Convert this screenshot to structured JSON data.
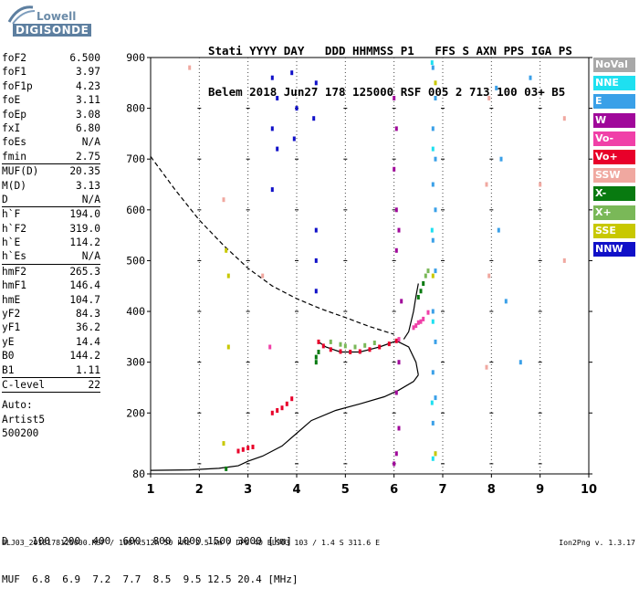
{
  "logo": {
    "line1": "Lowell",
    "line2": "DIGISONDE"
  },
  "header": {
    "line1": "Stati YYYY DAY   DDD HHMMSS P1   FFS S AXN PPS IGA PS",
    "line2": "Belem 2018 Jun27 178 125000 RSF 005 2 713 100 03+ B5"
  },
  "params": [
    {
      "label": "foF2",
      "value": "6.500"
    },
    {
      "label": "foF1",
      "value": "3.97"
    },
    {
      "label": "foF1p",
      "value": "4.23"
    },
    {
      "label": "foE",
      "value": "3.11"
    },
    {
      "label": "foEp",
      "value": "3.08"
    },
    {
      "label": "fxI",
      "value": "6.80"
    },
    {
      "label": "foEs",
      "value": "N/A"
    },
    {
      "label": "fmin",
      "value": "2.75"
    },
    {
      "label": "MUF(D)",
      "value": "20.35"
    },
    {
      "label": "M(D)",
      "value": "3.13"
    },
    {
      "label": "D",
      "value": "N/A"
    },
    {
      "label": "h`F",
      "value": "194.0"
    },
    {
      "label": "h`F2",
      "value": "319.0"
    },
    {
      "label": "h`E",
      "value": "114.2"
    },
    {
      "label": "h`Es",
      "value": "N/A"
    },
    {
      "label": "hmF2",
      "value": "265.3"
    },
    {
      "label": "hmF1",
      "value": "146.4"
    },
    {
      "label": "hmE",
      "value": "104.7"
    },
    {
      "label": "yF2",
      "value": "84.3"
    },
    {
      "label": "yF1",
      "value": "36.2"
    },
    {
      "label": "yE",
      "value": "14.4"
    },
    {
      "label": "B0",
      "value": "144.2"
    },
    {
      "label": "B1",
      "value": "1.11"
    },
    {
      "label": "C-level",
      "value": "22"
    }
  ],
  "auto": {
    "line1": "Auto:",
    "line2": "Artist5",
    "line3": "500200"
  },
  "legend": [
    {
      "label": "NoVal",
      "color": "#a8a8a8"
    },
    {
      "label": "NNE",
      "color": "#1ee0f0"
    },
    {
      "label": "E",
      "color": "#3aa0e8"
    },
    {
      "label": "W",
      "color": "#a0089a"
    },
    {
      "label": "Vo-",
      "color": "#f040a8"
    },
    {
      "label": "Vo+",
      "color": "#e8002a"
    },
    {
      "label": "SSW",
      "color": "#f0a8a0"
    },
    {
      "label": "X-",
      "color": "#087a10"
    },
    {
      "label": "X+",
      "color": "#7ab858"
    },
    {
      "label": "SSE",
      "color": "#c8c800"
    },
    {
      "label": "NNW",
      "color": "#1010c8"
    }
  ],
  "footer": {
    "line1": "D    100  200  400  600  800 1000 1500 3000 [km]",
    "line2": "MUF  6.8  6.9  7.2  7.7  8.5  9.5 12.5 20.4 [MHz]",
    "file": "BLJ03_2018178125000.RSF / 180fx512h 50 kHz 2.5 km / DPS-4D BLJ03 103 / 1.4 S 311.6 E",
    "version": "Ion2Png v. 1.3.17"
  },
  "chart_data": {
    "type": "scatter",
    "title": "",
    "xlabel": "",
    "ylabel": "",
    "xlim": [
      1,
      10
    ],
    "ylim": [
      80,
      900
    ],
    "y_scale": "linear",
    "x_ticks": [
      "1",
      "2",
      "3",
      "4",
      "5",
      "6",
      "7",
      "8",
      "9",
      "10"
    ],
    "y_ticks": [
      "80",
      "200",
      "300",
      "400",
      "500",
      "600",
      "700",
      "800",
      "900"
    ],
    "grid": "dotted vertical at integer MHz, tick marks at 100 km",
    "series": [
      {
        "name": "Vo+",
        "color": "#e8002a",
        "points": [
          [
            2.8,
            125
          ],
          [
            2.9,
            128
          ],
          [
            3.0,
            131
          ],
          [
            3.1,
            133
          ],
          [
            3.5,
            200
          ],
          [
            3.6,
            205
          ],
          [
            3.7,
            210
          ],
          [
            3.8,
            218
          ],
          [
            3.9,
            228
          ],
          [
            4.45,
            340
          ],
          [
            4.55,
            332
          ],
          [
            4.7,
            325
          ],
          [
            4.9,
            321
          ],
          [
            5.1,
            320
          ],
          [
            5.3,
            321
          ],
          [
            5.5,
            325
          ],
          [
            5.7,
            330
          ],
          [
            5.9,
            336
          ],
          [
            6.05,
            342
          ]
        ]
      },
      {
        "name": "Vo-",
        "color": "#f040a8",
        "points": [
          [
            3.45,
            330
          ],
          [
            6.1,
            345
          ],
          [
            6.4,
            368
          ],
          [
            6.5,
            378
          ],
          [
            6.6,
            385
          ],
          [
            6.7,
            398
          ],
          [
            6.55,
            380
          ],
          [
            6.45,
            372
          ]
        ]
      },
      {
        "name": "X-",
        "color": "#087a10",
        "points": [
          [
            2.55,
            90
          ],
          [
            4.4,
            310
          ],
          [
            4.45,
            320
          ],
          [
            4.4,
            300
          ],
          [
            6.5,
            428
          ],
          [
            6.55,
            440
          ],
          [
            6.6,
            455
          ]
        ]
      },
      {
        "name": "X+",
        "color": "#7ab858",
        "points": [
          [
            4.7,
            340
          ],
          [
            4.9,
            335
          ],
          [
            5.0,
            332
          ],
          [
            5.2,
            330
          ],
          [
            5.4,
            333
          ],
          [
            5.6,
            338
          ],
          [
            6.65,
            470
          ],
          [
            6.7,
            480
          ]
        ]
      },
      {
        "name": "W",
        "color": "#a0089a",
        "points": [
          [
            6.0,
            820
          ],
          [
            6.05,
            760
          ],
          [
            6.0,
            680
          ],
          [
            6.05,
            600
          ],
          [
            6.1,
            560
          ],
          [
            6.05,
            520
          ],
          [
            6.15,
            420
          ],
          [
            6.1,
            300
          ],
          [
            6.05,
            240
          ],
          [
            6.1,
            170
          ],
          [
            6.05,
            120
          ],
          [
            6.0,
            100
          ]
        ]
      },
      {
        "name": "NNW",
        "color": "#1010c8",
        "points": [
          [
            3.5,
            860
          ],
          [
            3.6,
            820
          ],
          [
            3.5,
            760
          ],
          [
            3.6,
            720
          ],
          [
            3.5,
            640
          ],
          [
            3.9,
            870
          ],
          [
            4.0,
            800
          ],
          [
            3.95,
            740
          ],
          [
            4.4,
            850
          ],
          [
            4.35,
            780
          ],
          [
            4.4,
            560
          ],
          [
            4.4,
            500
          ],
          [
            4.4,
            440
          ]
        ]
      },
      {
        "name": "E",
        "color": "#3aa0e8",
        "points": [
          [
            6.8,
            880
          ],
          [
            6.85,
            820
          ],
          [
            6.8,
            760
          ],
          [
            6.85,
            700
          ],
          [
            6.8,
            650
          ],
          [
            6.85,
            600
          ],
          [
            6.8,
            540
          ],
          [
            6.85,
            480
          ],
          [
            6.8,
            400
          ],
          [
            6.85,
            340
          ],
          [
            6.8,
            280
          ],
          [
            6.85,
            230
          ],
          [
            6.8,
            180
          ],
          [
            6.85,
            120
          ],
          [
            8.1,
            840
          ],
          [
            8.2,
            700
          ],
          [
            8.15,
            560
          ],
          [
            8.3,
            420
          ],
          [
            8.6,
            300
          ],
          [
            8.8,
            860
          ]
        ]
      },
      {
        "name": "NNE",
        "color": "#1ee0f0",
        "points": [
          [
            6.78,
            890
          ],
          [
            6.8,
            720
          ],
          [
            6.78,
            560
          ],
          [
            6.8,
            380
          ],
          [
            6.78,
            220
          ],
          [
            6.8,
            110
          ]
        ]
      },
      {
        "name": "SSW",
        "color": "#f0a8a0",
        "points": [
          [
            1.8,
            880
          ],
          [
            2.5,
            620
          ],
          [
            3.3,
            470
          ],
          [
            7.95,
            820
          ],
          [
            7.9,
            650
          ],
          [
            7.95,
            470
          ],
          [
            7.9,
            290
          ],
          [
            9.0,
            650
          ],
          [
            9.5,
            500
          ],
          [
            9.5,
            780
          ]
        ]
      },
      {
        "name": "SSE",
        "color": "#c8c800",
        "points": [
          [
            2.55,
            520
          ],
          [
            2.6,
            470
          ],
          [
            2.6,
            330
          ],
          [
            2.5,
            140
          ],
          [
            6.85,
            850
          ],
          [
            6.8,
            470
          ],
          [
            6.85,
            120
          ]
        ]
      }
    ],
    "profile_curves": [
      {
        "style": "solid",
        "points": [
          [
            1.0,
            87
          ],
          [
            1.8,
            88
          ],
          [
            2.4,
            91
          ],
          [
            2.8,
            96
          ],
          [
            3.0,
            105
          ],
          [
            3.3,
            115
          ],
          [
            3.7,
            135
          ],
          [
            4.0,
            160
          ],
          [
            4.3,
            185
          ],
          [
            4.8,
            205
          ],
          [
            5.3,
            218
          ],
          [
            5.8,
            232
          ],
          [
            6.1,
            245
          ],
          [
            6.4,
            262
          ],
          [
            6.5,
            275
          ]
        ]
      },
      {
        "style": "solid",
        "points": [
          [
            6.5,
            275
          ],
          [
            6.45,
            300
          ],
          [
            6.3,
            330
          ],
          [
            6.05,
            342
          ],
          [
            5.7,
            330
          ],
          [
            5.3,
            320
          ],
          [
            4.9,
            320
          ],
          [
            4.6,
            330
          ],
          [
            4.45,
            340
          ]
        ]
      },
      {
        "style": "solid",
        "points": [
          [
            6.2,
            345
          ],
          [
            6.3,
            360
          ],
          [
            6.4,
            400
          ],
          [
            6.45,
            430
          ],
          [
            6.5,
            455
          ]
        ]
      },
      {
        "style": "dashed",
        "points": [
          [
            1.0,
            705
          ],
          [
            1.5,
            640
          ],
          [
            2.0,
            580
          ],
          [
            2.5,
            530
          ],
          [
            3.0,
            485
          ],
          [
            3.5,
            450
          ],
          [
            4.0,
            425
          ],
          [
            4.5,
            405
          ],
          [
            5.0,
            388
          ],
          [
            5.5,
            370
          ],
          [
            6.0,
            355
          ]
        ]
      }
    ]
  }
}
